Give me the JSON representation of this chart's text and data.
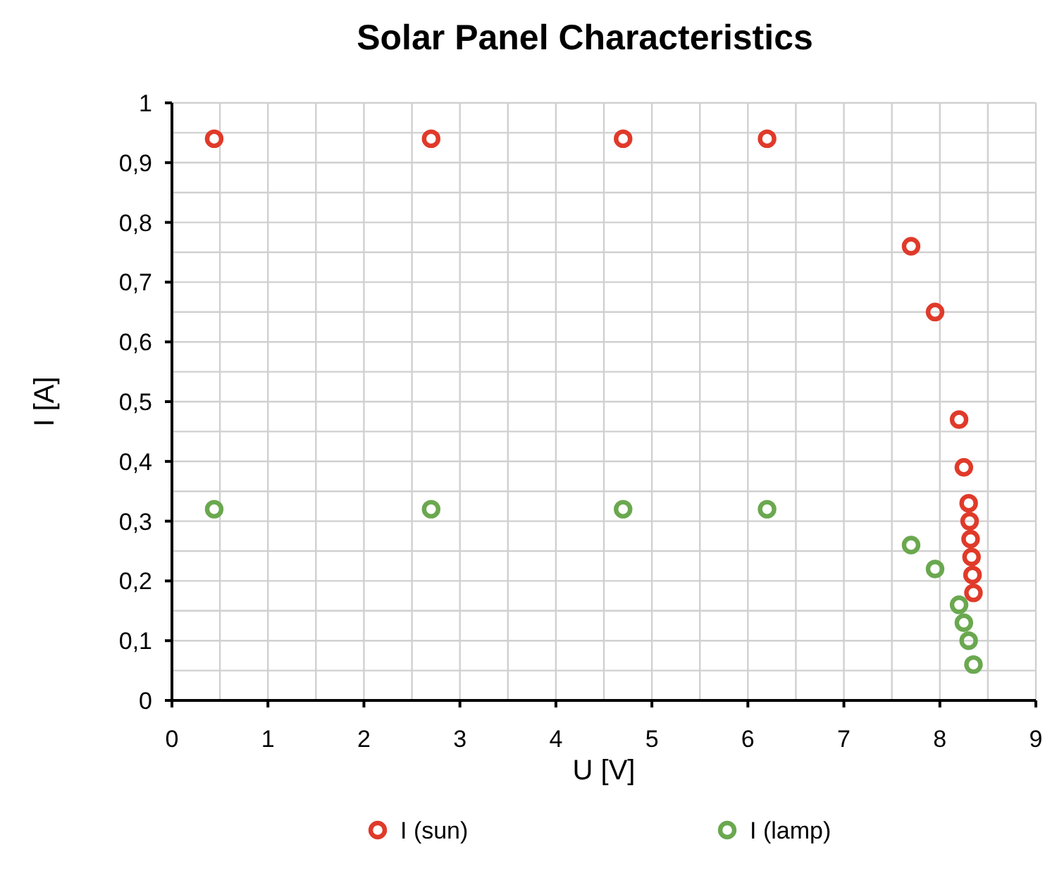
{
  "chart_data": {
    "type": "scatter",
    "title": "Solar Panel Characteristics",
    "xlabel": "U [V]",
    "ylabel": "I [A]",
    "xlim": [
      0,
      9
    ],
    "xticks": [
      0,
      1,
      2,
      3,
      4,
      5,
      6,
      7,
      8,
      9
    ],
    "ylim": [
      0,
      1
    ],
    "yticks": [
      0,
      {
        "value": 0.1,
        "label": "0,1"
      },
      {
        "value": 0.2,
        "label": "0,2"
      },
      {
        "value": 0.3,
        "label": "0,3"
      },
      {
        "value": 0.4,
        "label": "0,4"
      },
      {
        "value": 0.5,
        "label": "0,5"
      },
      {
        "value": 0.6,
        "label": "0,6"
      },
      {
        "value": 0.7,
        "label": "0,7"
      },
      {
        "value": 0.8,
        "label": "0,8"
      },
      {
        "value": 0.9,
        "label": "0,9"
      },
      1
    ],
    "grid": true,
    "legend": "bottom",
    "marker": "circle",
    "series": [
      {
        "name": "I (sun)",
        "color": "#e03a2a",
        "x": [
          0.44,
          2.7,
          4.7,
          6.2,
          7.7,
          7.95,
          8.2,
          8.25,
          8.3,
          8.31,
          8.32,
          8.33,
          8.34,
          8.35
        ],
        "values": [
          0.94,
          0.94,
          0.94,
          0.94,
          0.76,
          0.65,
          0.47,
          0.39,
          0.33,
          0.3,
          0.27,
          0.24,
          0.21,
          0.18
        ]
      },
      {
        "name": "I (lamp)",
        "color": "#6aa84f",
        "x": [
          0.44,
          2.7,
          4.7,
          6.2,
          7.7,
          7.95,
          8.2,
          8.25,
          8.3,
          8.35
        ],
        "values": [
          0.32,
          0.32,
          0.32,
          0.32,
          0.26,
          0.22,
          0.16,
          0.13,
          0.1,
          0.06
        ]
      }
    ]
  }
}
